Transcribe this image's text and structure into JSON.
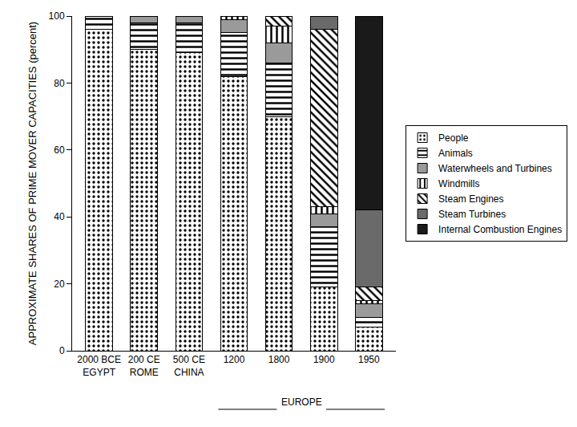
{
  "chart_data": {
    "type": "bar",
    "stacked": true,
    "y_label": "APPROXIMATE SHARES OF PRIME MOVER CAPACITIES (percent)",
    "categories": [
      "2000 BCE\nEGYPT",
      "200 CE\nROME",
      "500 CE\nCHINA",
      "1200",
      "1800",
      "1900",
      "1950"
    ],
    "annotations": [
      "EUROPE"
    ],
    "ylim": [
      0,
      100
    ],
    "yticks": [
      0,
      20,
      40,
      60,
      80,
      100
    ],
    "grid": false,
    "legend": "right",
    "series": [
      {
        "name": "People",
        "color": "#ffffff",
        "marker": "dots",
        "values": [
          96,
          90,
          89,
          82,
          70,
          19,
          7
        ]
      },
      {
        "name": "Animals",
        "color": "#ffffff",
        "marker": "horizontal",
        "values": [
          4,
          8,
          9,
          13,
          16,
          18,
          3
        ]
      },
      {
        "name": "Waterwheels and Turbines",
        "color": "#9a9a9a",
        "marker": "solid",
        "values": [
          0,
          2,
          2,
          4,
          6,
          4,
          4
        ]
      },
      {
        "name": "Windmills",
        "color": "#ffffff",
        "marker": "vertical",
        "values": [
          0,
          0,
          0,
          1,
          5,
          2,
          1
        ]
      },
      {
        "name": "Steam Engines",
        "color": "#ffffff",
        "marker": "diagonal",
        "values": [
          0,
          0,
          0,
          0,
          3,
          53,
          4
        ]
      },
      {
        "name": "Steam Turbines",
        "color": "#6a6a6a",
        "marker": "solid",
        "values": [
          0,
          0,
          0,
          0,
          0,
          4,
          23
        ]
      },
      {
        "name": "Internal Combustion Engines",
        "color": "#1a1a1a",
        "marker": "solid",
        "values": [
          0,
          0,
          0,
          0,
          0,
          0,
          58
        ]
      }
    ]
  }
}
